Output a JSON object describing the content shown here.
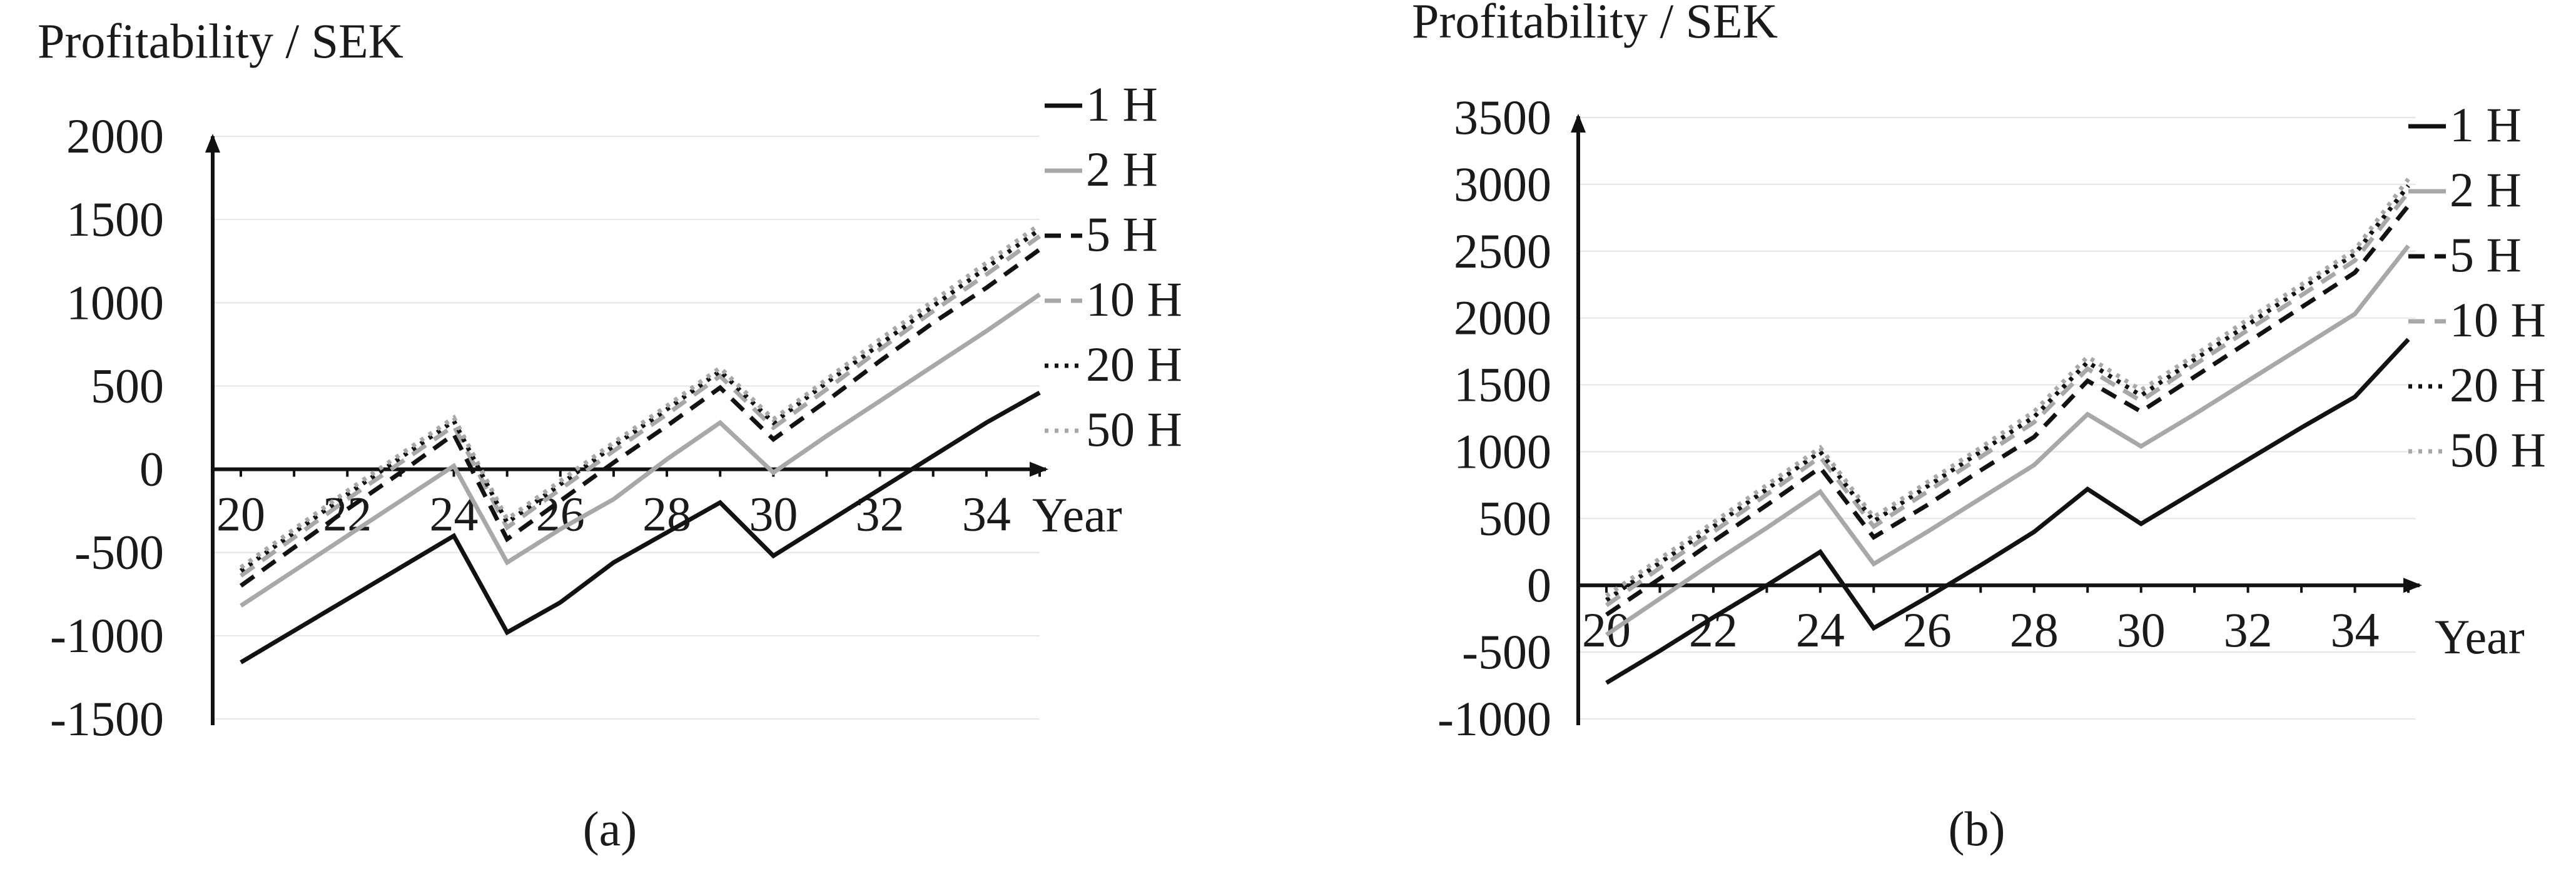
{
  "chart_data": [
    {
      "type": "line",
      "panel_label": "(a)",
      "ylabel": "Profitability / SEK",
      "xlabel": "Year",
      "x": [
        20,
        21,
        22,
        23,
        24,
        25,
        26,
        27,
        28,
        29,
        30,
        31,
        32,
        33,
        34,
        35
      ],
      "xticks": [
        20,
        22,
        24,
        26,
        28,
        30,
        32,
        34
      ],
      "yticks": [
        -1500,
        -1000,
        -500,
        0,
        500,
        1000,
        1500,
        2000
      ],
      "ylim": [
        -1500,
        2000
      ],
      "xlim": [
        20,
        35
      ],
      "grid": true,
      "legend_position": "right",
      "series": [
        {
          "name": "1 H",
          "values": [
            -1160,
            -970,
            -780,
            -590,
            -400,
            -980,
            -800,
            -560,
            -380,
            -200,
            -520,
            -320,
            -120,
            80,
            280,
            460
          ]
        },
        {
          "name": "2 H",
          "values": [
            -820,
            -610,
            -400,
            -190,
            20,
            -560,
            -360,
            -180,
            60,
            280,
            -20,
            200,
            410,
            620,
            830,
            1050
          ]
        },
        {
          "name": "5 H",
          "values": [
            -700,
            -470,
            -240,
            -20,
            210,
            -420,
            -190,
            40,
            260,
            490,
            180,
            410,
            650,
            880,
            1090,
            1320
          ]
        },
        {
          "name": "10 H",
          "values": [
            -640,
            -410,
            -180,
            40,
            260,
            -350,
            -120,
            110,
            330,
            560,
            250,
            480,
            720,
            950,
            1170,
            1400
          ]
        },
        {
          "name": "20 H",
          "values": [
            -610,
            -380,
            -150,
            70,
            290,
            -320,
            -90,
            140,
            360,
            590,
            280,
            520,
            750,
            980,
            1210,
            1440
          ]
        },
        {
          "name": "50 H",
          "values": [
            -590,
            -360,
            -130,
            90,
            310,
            -300,
            -70,
            160,
            380,
            610,
            300,
            540,
            780,
            1010,
            1240,
            1470
          ]
        }
      ]
    },
    {
      "type": "line",
      "panel_label": "(b)",
      "ylabel": "Profitability / SEK",
      "xlabel": "Year",
      "x": [
        20,
        21,
        22,
        23,
        24,
        25,
        26,
        27,
        28,
        29,
        30,
        31,
        32,
        33,
        34,
        35
      ],
      "xticks": [
        20,
        22,
        24,
        26,
        28,
        30,
        32,
        34
      ],
      "yticks": [
        -1000,
        -500,
        0,
        500,
        1000,
        1500,
        2000,
        2500,
        3000,
        3500
      ],
      "ylim": [
        -1000,
        3500
      ],
      "xlim": [
        20,
        35
      ],
      "grid": true,
      "legend_position": "right",
      "series": [
        {
          "name": "1 H",
          "values": [
            -730,
            -490,
            -240,
            0,
            250,
            -320,
            -90,
            150,
            400,
            720,
            460,
            700,
            940,
            1180,
            1410,
            1840
          ]
        },
        {
          "name": "2 H",
          "values": [
            -370,
            -100,
            170,
            430,
            700,
            160,
            400,
            650,
            900,
            1280,
            1040,
            1280,
            1530,
            1780,
            2030,
            2540
          ]
        },
        {
          "name": "5 H",
          "values": [
            -220,
            50,
            330,
            600,
            880,
            360,
            600,
            860,
            1110,
            1530,
            1300,
            1560,
            1820,
            2080,
            2340,
            2840
          ]
        },
        {
          "name": "10 H",
          "values": [
            -150,
            130,
            400,
            680,
            960,
            440,
            700,
            960,
            1220,
            1620,
            1380,
            1650,
            1910,
            2170,
            2430,
            2940
          ]
        },
        {
          "name": "20 H",
          "values": [
            -110,
            170,
            440,
            720,
            1000,
            480,
            740,
            1000,
            1260,
            1670,
            1420,
            1690,
            1950,
            2220,
            2480,
            2990
          ]
        },
        {
          "name": "50 H",
          "values": [
            -80,
            200,
            470,
            750,
            1030,
            510,
            770,
            1030,
            1300,
            1710,
            1460,
            1720,
            1990,
            2250,
            2510,
            3040
          ]
        }
      ]
    }
  ],
  "styles": {
    "series_colors": [
      "#111111",
      "#a8a8a8",
      "#111111",
      "#a8a8a8",
      "#111111",
      "#a8a8a8"
    ],
    "series_dashes": [
      "solid",
      "solid",
      "dashed",
      "dashed",
      "dotted",
      "dotted"
    ],
    "grid_color": "#e6e6e6",
    "axis_color": "#111111"
  }
}
